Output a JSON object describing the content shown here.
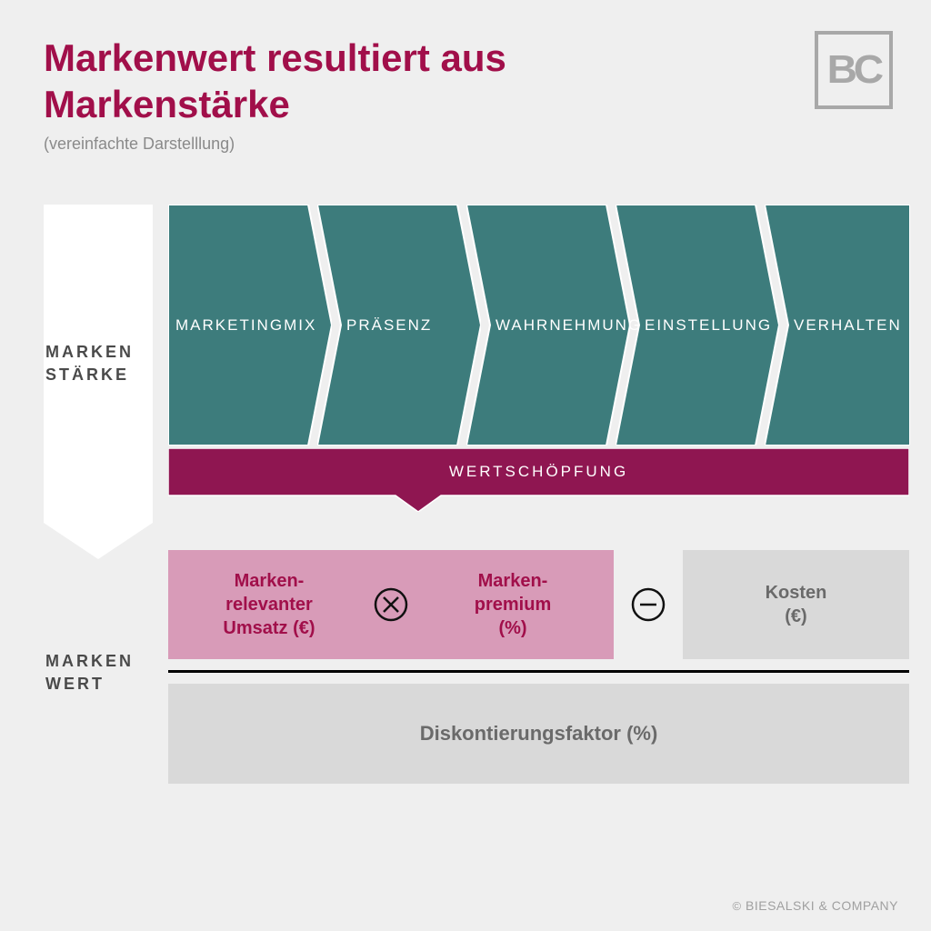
{
  "header": {
    "title_line1": "Markenwert resultiert aus",
    "title_line2": "Markenstärke",
    "subtitle": "(vereinfachte Darstelllung)",
    "logo_text": "BC"
  },
  "colors": {
    "title": "#a10f4a",
    "chevron_fill": "#3d7c7c",
    "wertschopfung_fill": "#8f1651",
    "pink_fill": "#d89bb8",
    "pink_text": "#a10f4a",
    "gray_fill": "#d9d9d9",
    "gray_text": "#6a6a6a",
    "background": "#efefef",
    "label_text": "#4a4a4a",
    "chevron_text": "#ffffff"
  },
  "row_labels": {
    "markenstarke_line1": "MARKEN",
    "markenstarke_line2": "STÄRKE",
    "markenwert_line1": "MARKEN",
    "markenwert_line2": "WERT"
  },
  "chevrons": [
    {
      "label": "MARKETING MIX"
    },
    {
      "label": "PRÄSENZ"
    },
    {
      "label": "WAHR NEHMUNG"
    },
    {
      "label": "EINSTELLUNG"
    },
    {
      "label": "VERHALTEN"
    }
  ],
  "wertschopfung_label": "WERTSCHÖPFUNG",
  "formula": {
    "box1_line1": "Marken-",
    "box1_line2": "relevanter",
    "box1_line3": "Umsatz (€)",
    "box2_line1": "Marken-",
    "box2_line2": "premium",
    "box2_line3": "(%)",
    "box3_line1": "Kosten",
    "box3_line2": "(€)",
    "discount": "Diskontierungsfaktor (%)"
  },
  "copyright": "BIESALSKI & COMPANY",
  "layout": {
    "chevron_width": 180,
    "chevron_overlap": 16,
    "chevron_notch": 26,
    "chevron_height": 265
  }
}
